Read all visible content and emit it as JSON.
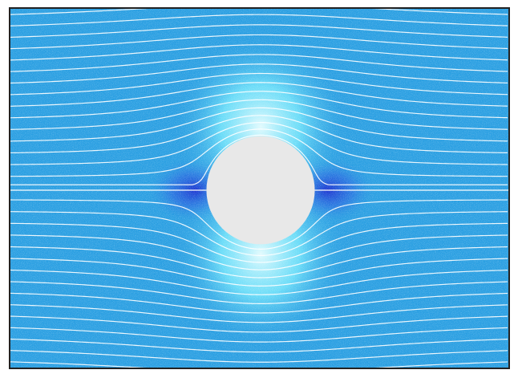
{
  "visualization": {
    "kind": "potential flow around a cylinder",
    "colors": {
      "background": "#2a9fe2",
      "fast_flow": "#bff8ff",
      "slow_flow": "#1a2fcf",
      "streamline": "#ffffff",
      "obstacle": "#e8e8e8",
      "frame_border": "#222222"
    },
    "streamline_count": 33
  }
}
